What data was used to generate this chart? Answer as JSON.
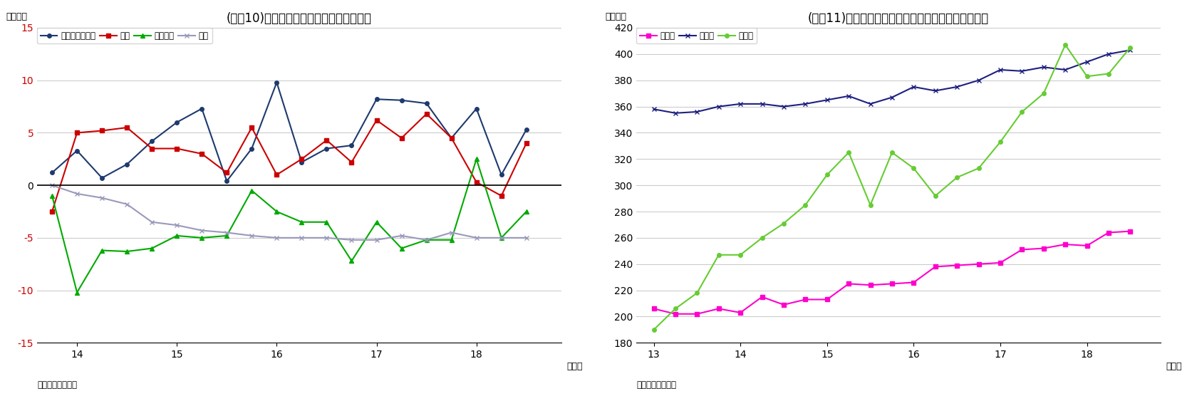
{
  "chart1": {
    "title": "(図表10)部門別資金過不足（季節調整値）",
    "ylabel": "（兆円）",
    "source": "（資料）日本銀行",
    "ylim": [
      -15,
      15
    ],
    "yticks": [
      -15,
      -10,
      -5,
      0,
      5,
      10,
      15
    ],
    "xticks": [
      14,
      15,
      16,
      17,
      18
    ],
    "xlim": [
      13.6,
      18.85
    ],
    "minkan_x": [
      13.75,
      14.0,
      14.25,
      14.5,
      14.75,
      15.0,
      15.25,
      15.5,
      15.75,
      16.0,
      16.25,
      16.5,
      16.75,
      17.0,
      17.25,
      17.5,
      17.75,
      18.0,
      18.25,
      18.5
    ],
    "minkan_y": [
      1.2,
      3.3,
      0.7,
      2.0,
      4.2,
      6.0,
      7.3,
      0.4,
      3.5,
      9.8,
      2.2,
      3.5,
      3.8,
      8.2,
      8.1,
      7.8,
      4.5,
      7.3,
      1.0,
      5.3
    ],
    "kakei_x": [
      13.75,
      14.0,
      14.25,
      14.5,
      14.75,
      15.0,
      15.25,
      15.5,
      15.75,
      16.0,
      16.25,
      16.5,
      16.75,
      17.0,
      17.25,
      17.5,
      17.75,
      18.0,
      18.25,
      18.5
    ],
    "kakei_y": [
      -2.5,
      5.0,
      5.2,
      5.5,
      3.5,
      3.5,
      3.0,
      1.2,
      5.5,
      1.0,
      2.5,
      4.3,
      2.2,
      6.2,
      4.5,
      6.8,
      4.5,
      0.3,
      -1.0,
      4.0
    ],
    "gov_x": [
      13.75,
      14.0,
      14.25,
      14.5,
      14.75,
      15.0,
      15.25,
      15.5,
      15.75,
      16.0,
      16.25,
      16.5,
      16.75,
      17.0,
      17.25,
      17.5,
      17.75,
      18.0,
      18.25,
      18.5
    ],
    "gov_y": [
      -1.0,
      -10.2,
      -6.2,
      -6.3,
      -6.0,
      -4.8,
      -5.0,
      -4.8,
      -0.5,
      -2.5,
      -3.5,
      -3.5,
      -7.2,
      -3.5,
      -6.0,
      -5.2,
      -5.2,
      2.5,
      -5.0,
      -2.5
    ],
    "kai_x": [
      13.75,
      14.0,
      14.25,
      14.5,
      14.75,
      15.0,
      15.25,
      15.5,
      15.75,
      16.0,
      16.25,
      16.5,
      16.75,
      17.0,
      17.25,
      17.5,
      17.75,
      18.0,
      18.25,
      18.5
    ],
    "kai_y": [
      0.0,
      -0.8,
      -1.2,
      -1.8,
      -3.5,
      -3.8,
      -4.3,
      -4.5,
      -4.8,
      -5.0,
      -5.0,
      -5.0,
      -5.2,
      -5.2,
      -4.8,
      -5.2,
      -4.5,
      -5.0,
      -5.0,
      -5.0
    ],
    "minkan_color": "#1E3A6E",
    "kakei_color": "#CC0000",
    "gov_color": "#00AA00",
    "kai_color": "#9999BB",
    "legend_labels": [
      "民間非金融法人",
      "家計",
      "一般政府",
      "海外"
    ]
  },
  "chart2": {
    "title": "(図表11)民間非金融法人の現預金・借入金・株式残高",
    "ylabel": "（兆円）",
    "source": "（資料）日本銀行",
    "ylim": [
      180,
      420
    ],
    "yticks": [
      180,
      200,
      220,
      240,
      260,
      280,
      300,
      320,
      340,
      360,
      380,
      400,
      420
    ],
    "xticks": [
      13,
      14,
      15,
      16,
      17,
      18
    ],
    "xlim": [
      12.8,
      18.85
    ],
    "gen_x": [
      13.0,
      13.25,
      13.5,
      13.75,
      14.0,
      14.25,
      14.5,
      14.75,
      15.0,
      15.25,
      15.5,
      15.75,
      16.0,
      16.25,
      16.5,
      16.75,
      17.0,
      17.25,
      17.5,
      17.75,
      18.0,
      18.25,
      18.5
    ],
    "gen_y": [
      206,
      202,
      202,
      206,
      203,
      215,
      209,
      213,
      213,
      225,
      224,
      225,
      226,
      238,
      239,
      240,
      241,
      251,
      252,
      255,
      254,
      264,
      265
    ],
    "kar_x": [
      13.0,
      13.25,
      13.5,
      13.75,
      14.0,
      14.25,
      14.5,
      14.75,
      15.0,
      15.25,
      15.5,
      15.75,
      16.0,
      16.25,
      16.5,
      16.75,
      17.0,
      17.25,
      17.5,
      17.75,
      18.0,
      18.25,
      18.5
    ],
    "kar_y": [
      358,
      355,
      356,
      360,
      362,
      362,
      360,
      362,
      365,
      368,
      362,
      367,
      375,
      372,
      375,
      380,
      388,
      387,
      390,
      388,
      394,
      400,
      403
    ],
    "kab_x": [
      13.0,
      13.25,
      13.5,
      13.75,
      14.0,
      14.25,
      14.5,
      14.75,
      15.0,
      15.25,
      15.5,
      15.75,
      16.0,
      16.25,
      16.5,
      16.75,
      17.0,
      17.25,
      17.5,
      17.75,
      18.0,
      18.25,
      18.5
    ],
    "kab_y": [
      190,
      206,
      218,
      247,
      247,
      260,
      271,
      285,
      308,
      325,
      285,
      325,
      313,
      292,
      306,
      313,
      333,
      356,
      370,
      407,
      383,
      385,
      405
    ],
    "gen_color": "#FF00CC",
    "kar_color": "#1E2080",
    "kab_color": "#66CC33",
    "legend_labels": [
      "現預金",
      "借入金",
      "株式等"
    ]
  }
}
